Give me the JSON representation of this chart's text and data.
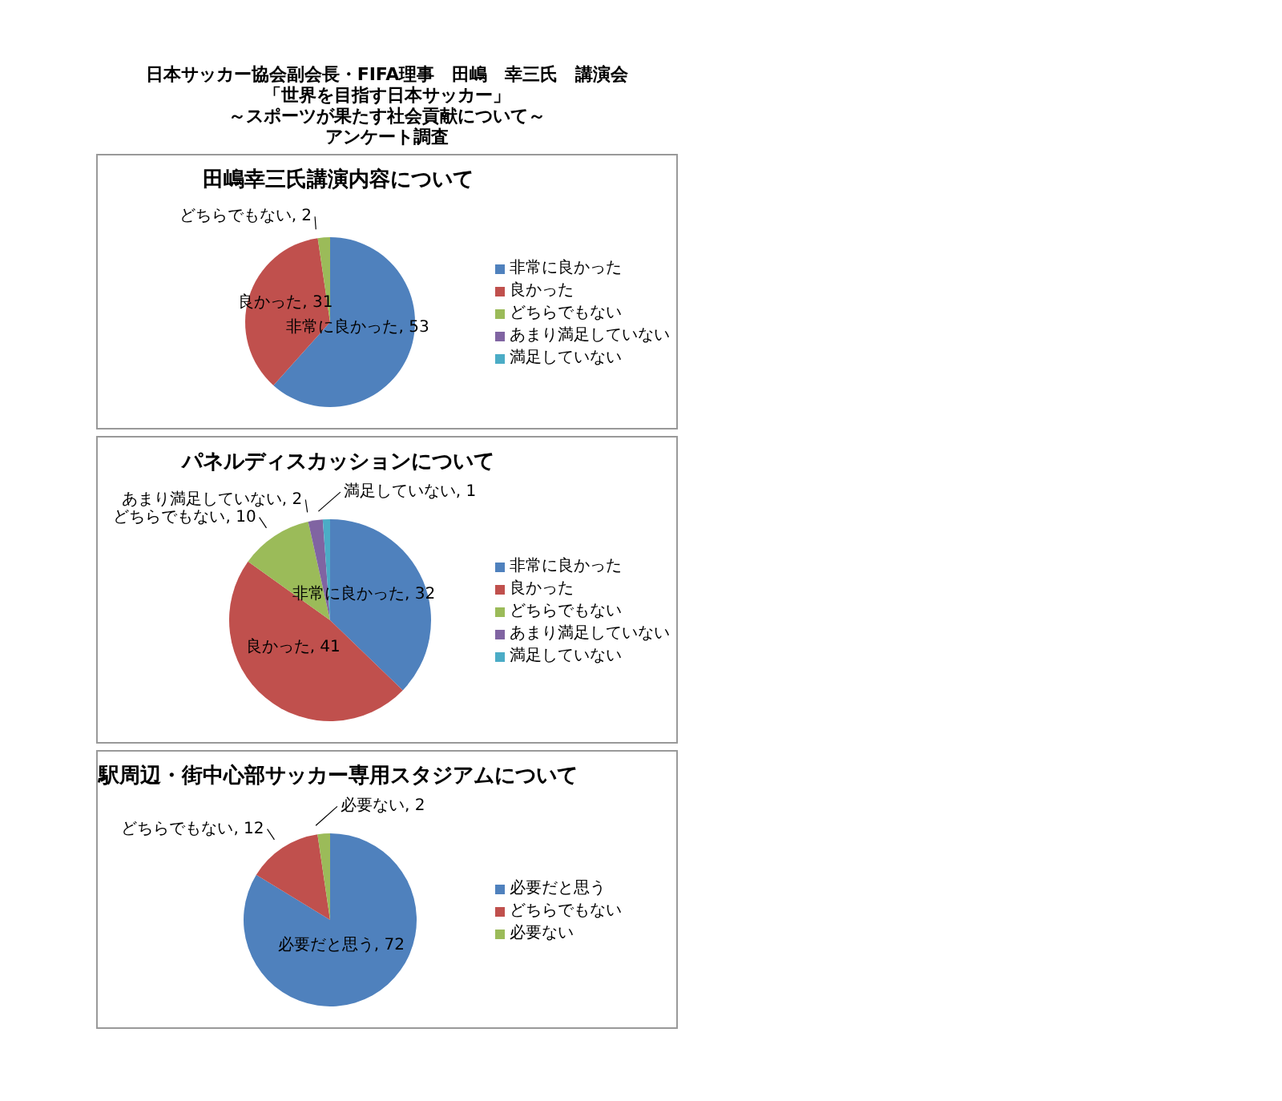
{
  "chart_data": [
    {
      "type": "other",
      "title": "日本サッカー協会副会長・FIFA理事　田嶋　幸三氏　講演会",
      "annotations": [
        "「世界を目指す日本サッカー」",
        "～スポーツが果たす社会貢献について～",
        "アンケート調査"
      ]
    },
    {
      "type": "pie",
      "title": "田嶋幸三氏講演内容について",
      "categories": [
        "非常に良かった",
        "良かった",
        "どちらでもない",
        "あまり満足していない",
        "満足していない"
      ],
      "values": [
        53,
        31,
        2,
        0,
        0
      ],
      "colors": [
        "#4f81bd",
        "#c0504d",
        "#9bbb59",
        "#8064a2",
        "#4bacc6"
      ],
      "value_labels": [
        "非常に良かった, 53",
        "良かった, 31",
        "どちらでもない, 2",
        null,
        null
      ],
      "legend": "right"
    },
    {
      "type": "pie",
      "title": "パネルディスカッションについて",
      "categories": [
        "非常に良かった",
        "良かった",
        "どちらでもない",
        "あまり満足していない",
        "満足していない"
      ],
      "values": [
        32,
        41,
        10,
        2,
        1
      ],
      "colors": [
        "#4f81bd",
        "#c0504d",
        "#9bbb59",
        "#8064a2",
        "#4bacc6"
      ],
      "value_labels": [
        "非常に良かった, 32",
        "良かった, 41",
        "どちらでもない, 10",
        "あまり満足していない, 2",
        "満足していない, 1"
      ],
      "legend": "right"
    },
    {
      "type": "pie",
      "title": "駅周辺・街中心部サッカー専用スタジアムについて",
      "categories": [
        "必要だと思う",
        "どちらでもない",
        "必要ない"
      ],
      "values": [
        72,
        12,
        2
      ],
      "colors": [
        "#4f81bd",
        "#c0504d",
        "#9bbb59"
      ],
      "value_labels": [
        "必要だと思う, 72",
        "どちらでもない, 12",
        "必要ない, 2"
      ],
      "legend": "right"
    }
  ]
}
